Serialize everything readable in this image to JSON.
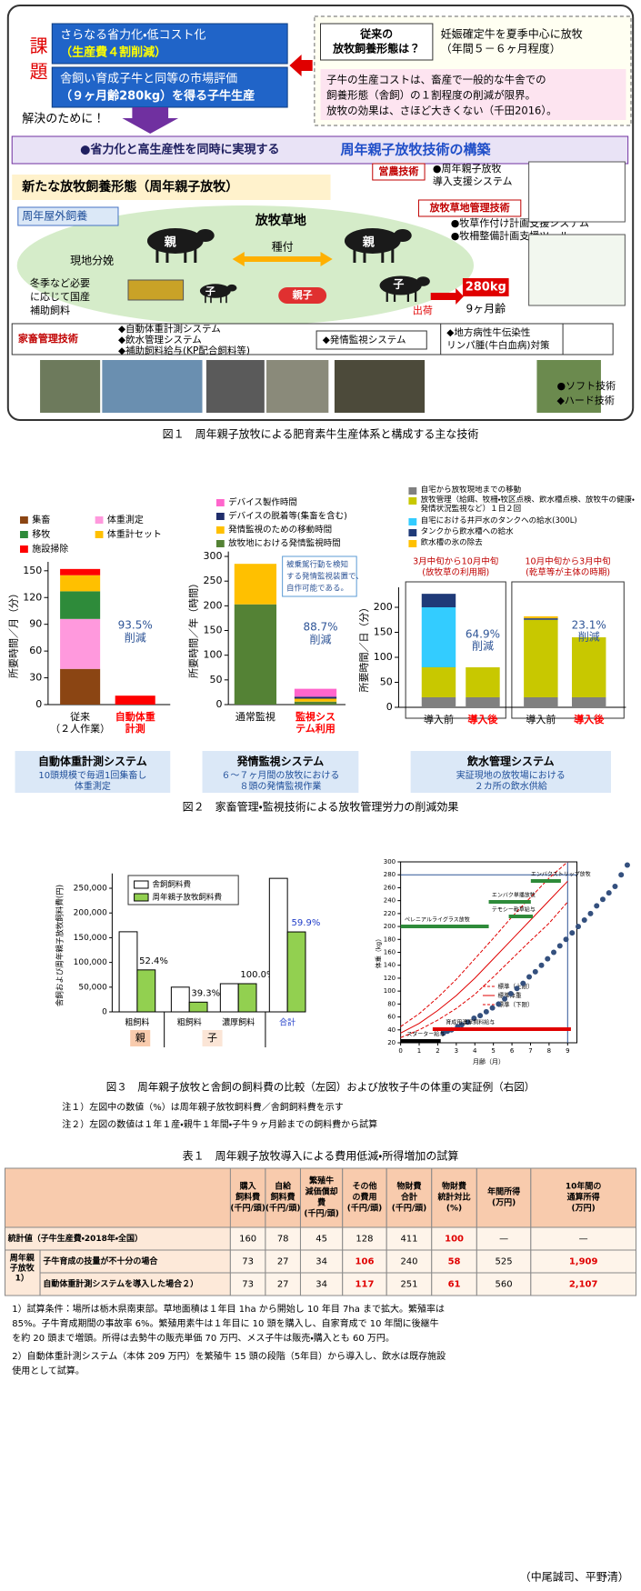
{
  "figure1": {
    "issue_label": "課題",
    "issues": [
      [
        "さらなる省力化・低コスト化",
        "（生産費４割削減）"
      ],
      [
        "舎飼い育成子牛と同等の市場評価",
        "（９ヶ月齢280kg）を得る子牛生産"
      ]
    ],
    "conventional_question": [
      "従来の",
      "放牧飼養形態は？"
    ],
    "conventional_answer": [
      "妊娠確定牛を夏季中心に放牧",
      "（年間５－６ヶ月程度）"
    ],
    "cost_note": [
      "子牛の生産コストは、畜産で一般的な牛舎での",
      "飼養形態（舎飼）の１割程度の削減が限界。",
      "放牧の効果は、さほど大きくない（千田2016）。"
    ],
    "solution_lead": "解決のために！",
    "banner": [
      "●省力化と高生産性を同時に実現する",
      "周年親子放牧技術の構築"
    ],
    "new_system_title": "新たな放牧飼養形態（周年親子放牧）",
    "scene": [
      "周年屋外飼養",
      "放牧草地",
      "親",
      "種付",
      "親",
      "現地分娩",
      "子",
      "親子",
      "子",
      "出荷",
      "280kg",
      "9ヶ月齢"
    ],
    "supplement": [
      "冬季など必要",
      "に応じて国産",
      "補助飼料"
    ],
    "tech_groups": [
      {
        "heading": "営農技術",
        "items": [
          "●周年親子放牧",
          "導入支援システム"
        ]
      },
      {
        "heading": "放牧草地管理技術",
        "items": [
          "●牧草作付け計画支援システム",
          "●牧柵整備計画支援ツール"
        ]
      },
      {
        "heading": "家畜管理技術",
        "items": [
          "◆自動体重計測システム",
          "◆飲水管理システム",
          "◆補助飼料給与(KP配合飼料等)"
        ]
      }
    ],
    "other_tech": [
      [
        "◆発情監視システム"
      ],
      [
        "◆地方病性牛伝染性",
        "リンパ腫(牛白血病)対策"
      ]
    ],
    "legend": [
      "●ソフト技術",
      "◆ハード技術"
    ],
    "caption": "図１　周年親子放牧による肥育素牛生産体系と構成する主な技術"
  },
  "figure2": {
    "panels": [
      {
        "title": "自動体重計測システム",
        "note": [
          "10頭規模で毎週1回集畜し",
          "体重測定"
        ]
      },
      {
        "title": "発情監視システム",
        "note": [
          "６～７ヶ月間の放牧における",
          "８頭の発情監視作業"
        ]
      },
      {
        "title": "飲水管理システム",
        "note": [
          "実証現地の放牧場における",
          "２カ所の飲水供給"
        ]
      }
    ],
    "caption": "図２　家畜管理・監視技術による放牧管理労力の削減効果"
  },
  "figure3": {
    "caption": "図３　周年親子放牧と舎飼の飼料費の比較（左図）および放牧子牛の体重の実証例（右図）",
    "notes": [
      "注１）左図中の数値（%）は周年親子放牧飼料費／舎飼飼料費を示す",
      "注２）左図の数値は１年１産・親牛１年間・子牛９ヶ月齢までの飼料費から試算"
    ]
  },
  "chart_data": [
    {
      "type": "stacked-bar",
      "y_label": "所要時間／月（分）",
      "categories": [
        [
          "従来",
          "（２人作業）"
        ],
        [
          "自動体重",
          "計測"
        ]
      ],
      "label_colors": [
        "#000000",
        "#ff0000"
      ],
      "series": [
        {
          "name": "集畜",
          "color": "#8b4513",
          "values": [
            40,
            0
          ]
        },
        {
          "name": "体重測定",
          "color": "#ff99dd",
          "values": [
            56,
            0
          ]
        },
        {
          "name": "移牧",
          "color": "#2e8b3a",
          "values": [
            31,
            0
          ]
        },
        {
          "name": "体重計セット",
          "color": "#ffc000",
          "values": [
            18,
            0
          ]
        },
        {
          "name": "施設掃除",
          "color": "#ff0000",
          "values": [
            7,
            10
          ]
        }
      ],
      "ylim": [
        0,
        160
      ],
      "yticks": [
        0,
        30,
        60,
        90,
        120,
        150
      ],
      "annotation": [
        "93.5%",
        "削減"
      ]
    },
    {
      "type": "stacked-bar",
      "y_label": "所要時間／年（時間）",
      "categories": [
        [
          "通常監視"
        ],
        [
          "監視シス",
          "テム利用"
        ]
      ],
      "label_colors": [
        "#000000",
        "#ff0000"
      ],
      "series": [
        {
          "name": "放牧地における発情監視時間",
          "color": "#548235",
          "values": [
            203,
            6
          ]
        },
        {
          "name": "発情監視のための移動時間",
          "color": "#ffc000",
          "values": [
            82,
            6
          ]
        },
        {
          "name": "デバイスの脱着等(集畜を含む)",
          "color": "#1f2d6b",
          "values": [
            0,
            4
          ]
        },
        {
          "name": "デバイス製作時間",
          "color": "#ff66cc",
          "values": [
            0,
            16
          ]
        }
      ],
      "ylim": [
        0,
        310
      ],
      "yticks": [
        0,
        50,
        100,
        150,
        200,
        250,
        300
      ],
      "annotation": [
        "88.7%",
        "削減"
      ],
      "callout": [
        "被乗駕行動を検知",
        "する発情監視装置で、",
        "自作可能である。"
      ]
    },
    {
      "type": "stacked-bar",
      "y_label": "所要時間／日（分）",
      "categories": [
        [
          "導入前"
        ],
        [
          "導入後"
        ],
        [
          "導入前"
        ],
        [
          "導入後"
        ]
      ],
      "label_colors": [
        "#000000",
        "#ff0000",
        "#000000",
        "#ff0000"
      ],
      "groups": [
        [
          "3月中旬から10月中旬",
          "(放牧草の利用期)"
        ],
        [
          "10月中旬から3月中旬",
          "(乾草等が主体の時期)"
        ]
      ],
      "series": [
        {
          "name": "自宅から放牧現地までの移動",
          "color": "#808080",
          "values": [
            20,
            20,
            20,
            20
          ]
        },
        {
          "name": "放牧管理（給餌、牧柵・牧区点検、飲水槽点検、放牧牛の健康・発情状況監視など）１日２回",
          "color": "#c8c800",
          "values": [
            60,
            60,
            155,
            120
          ]
        },
        {
          "name": "自宅における井戸水のタンクへの給水(300L)",
          "color": "#33ccff",
          "values": [
            120,
            0,
            0,
            0
          ]
        },
        {
          "name": "タンクから飲水槽への給水",
          "color": "#1f3a78",
          "values": [
            27,
            0,
            3,
            0
          ]
        },
        {
          "name": "飲水槽の氷の除去",
          "color": "#ffc000",
          "values": [
            0,
            0,
            4,
            0
          ]
        }
      ],
      "ylim": [
        0,
        240
      ],
      "yticks": [
        0,
        50,
        100,
        150,
        200
      ],
      "annotations": [
        [
          "64.9%",
          "削減"
        ],
        [
          "23.1%",
          "削減"
        ]
      ]
    },
    {
      "type": "grouped-bar",
      "y_label": "舎飼および周年親子放牧飼料費(円)",
      "categories": [
        "粗飼料",
        "粗飼料",
        "濃厚飼料",
        "合計"
      ],
      "groups": [
        "親",
        "子"
      ],
      "series": [
        {
          "name": "舎飼飼料費",
          "color": "#ffffff",
          "values": [
            162000,
            50000,
            57000,
            270000
          ]
        },
        {
          "name": "周年親子放牧飼料費",
          "color": "#92d050",
          "values": [
            84900,
            19650,
            57000,
            161700
          ]
        }
      ],
      "ratios": [
        "52.4%",
        "39.3%",
        "100.0%",
        "59.9%"
      ],
      "ylim": [
        0,
        280000
      ],
      "yticks": [
        0,
        {
          "value": 50000,
          "label": "50,000"
        },
        {
          "value": 100000,
          "label": "100,000"
        },
        {
          "value": 150000,
          "label": "150,000"
        },
        {
          "value": 200000,
          "label": "200,000"
        },
        {
          "value": 250000,
          "label": "250,000"
        }
      ]
    },
    {
      "type": "scatter",
      "x_label": "月齢（月）",
      "y_label": "体重（kg）",
      "color": "#34507e",
      "x": [
        0.1,
        0.3,
        0.5,
        0.8,
        1.0,
        1.3,
        1.6,
        1.9,
        2.2,
        2.5,
        2.8,
        3.1,
        3.4,
        3.7,
        4.0,
        4.3,
        4.6,
        4.9,
        5.2,
        5.5,
        5.8,
        6.1,
        6.4,
        6.7,
        7.0,
        7.3,
        7.6,
        7.9,
        8.2,
        8.5,
        8.8,
        9.1
      ],
      "values": [
        35,
        38,
        40,
        45,
        48,
        52,
        58,
        62,
        68,
        74,
        80,
        88,
        96,
        104,
        112,
        122,
        130,
        140,
        150,
        160,
        170,
        180,
        190,
        200,
        210,
        220,
        232,
        242,
        252,
        262,
        280,
        295
      ],
      "curves": [
        {
          "name": "標準（上限）",
          "x": [
            0,
            1,
            2,
            3,
            4,
            5,
            6,
            7,
            8,
            9
          ],
          "values": [
            45,
            65,
            90,
            118,
            150,
            182,
            215,
            245,
            275,
            300
          ]
        },
        {
          "name": "標準体重",
          "x": [
            0,
            1,
            2,
            3,
            4,
            5,
            6,
            7,
            8,
            9
          ],
          "values": [
            35,
            50,
            70,
            93,
            120,
            150,
            180,
            210,
            240,
            270
          ]
        },
        {
          "name": "標準（下限）",
          "x": [
            0,
            1,
            2,
            3,
            4,
            5,
            6,
            7,
            8,
            9
          ],
          "values": [
            28,
            40,
            55,
            73,
            95,
            122,
            150,
            178,
            205,
            238
          ]
        }
      ],
      "annotations": [
        "ペレニアルライグラス放牧",
        "エンバク単播放牧",
        "テモシー乾草給与",
        "エンバクストリップ放牧",
        "育成用濃厚飼料給与",
        "スターター給与"
      ],
      "reference_y": 280,
      "reference_x": 9,
      "xlim": [
        0,
        9.5
      ],
      "ylim": [
        20,
        300
      ],
      "xticks": [
        0,
        1,
        2,
        3,
        4,
        5,
        6,
        7,
        8,
        9
      ],
      "yticks": [
        20,
        40,
        60,
        80,
        100,
        120,
        140,
        160,
        180,
        200,
        220,
        240,
        260,
        280,
        300
      ]
    }
  ],
  "table": {
    "title": "表１　周年親子放牧導入による費用低減・所得増加の試算",
    "header": [
      [
        "購入",
        "飼料費",
        "(千円/頭)"
      ],
      [
        "自給",
        "飼料費",
        "(千円/頭)"
      ],
      [
        "繁殖牛",
        "減価償却",
        "費",
        "(千円/頭)"
      ],
      [
        "その他",
        "の費用",
        "(千円/頭)"
      ],
      [
        "物財費",
        "合計",
        "(千円/頭)"
      ],
      [
        "物財費",
        "統計対比",
        "(%)"
      ],
      [
        "年間所得",
        "(万円)"
      ],
      [
        "10年間の",
        "通算所得",
        "(万円)"
      ]
    ],
    "group": [
      "周年親",
      "子放牧",
      "1）"
    ],
    "rows": [
      {
        "label": "統計値（子牛生産費・2018年・全国）",
        "cells": [
          "160",
          "78",
          "45",
          "128",
          "411",
          "100",
          "—",
          "—"
        ]
      },
      {
        "label": "子牛育成の技量が不十分の場合",
        "cells": [
          "73",
          "27",
          "34",
          "106",
          "240",
          "58",
          "525",
          "1,909"
        ]
      },
      {
        "label": "自動体重計測システムを導入した場合２）",
        "cells": [
          "73",
          "27",
          "34",
          "117",
          "251",
          "61",
          "560",
          "2,107"
        ]
      }
    ],
    "footnotes": [
      [
        "1）試算条件：場所は栃木県南東部。草地面積は１年目 1ha から開始し 10 年目 7ha まで拡大。繁殖率は",
        "85%。子牛育成期間の事故率 6%。繁殖用素牛は１年目に 10 頭を購入し、自家育成で 10 年間に後継牛",
        "を約 20 頭まで増頭。所得は去勢牛の販売単価 70 万円、メス子牛は販売・購入とも 60 万円。"
      ],
      [
        "2）自動体重計測システム（本体 209 万円）を繁殖牛 15 頭の段階（5年目）から導入し、飲水は既存施設",
        "使用として試算。"
      ]
    ]
  },
  "author": "（中尾誠司、平野清）"
}
